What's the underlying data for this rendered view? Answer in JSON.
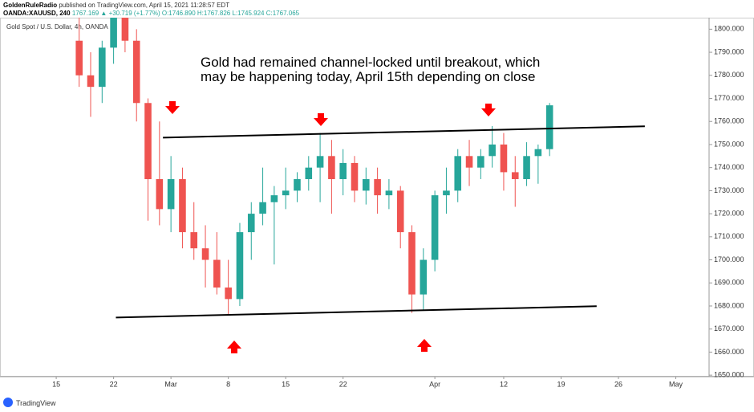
{
  "header": {
    "publisher": "GoldenRuleRadio",
    "published": "published on TradingView.com, April 15, 2021 11:28:57 EDT",
    "symbol": "OANDA:XAUUSD, 240",
    "last": "1767.169",
    "change": "▲ +30.719 (+1.77%)",
    "ohlc": "O:1746.890 H:1767.826 L:1745.924 C:1767.065"
  },
  "footer": {
    "brand": "TradingView"
  },
  "chart_data": {
    "type": "candlestick",
    "title": "Gold Spot / U.S. Dollar, 4h, OANDA",
    "annotation": [
      "Gold had remained channel-locked until breakout, which",
      "may be happening today, April 15th depending on close"
    ],
    "up_color": "#26a69a",
    "down_color": "#ef5350",
    "grid": false,
    "x": [
      2,
      3,
      4,
      5,
      6,
      7,
      8,
      9,
      10,
      11,
      12,
      13,
      14,
      15,
      16,
      17,
      18,
      19,
      20,
      21,
      22,
      23,
      24,
      25,
      26,
      27,
      28,
      29,
      30,
      31,
      32,
      33,
      34,
      35,
      36,
      37,
      38,
      39,
      40,
      41,
      42,
      43
    ],
    "open": [
      1795,
      1780,
      1775,
      1792,
      1805,
      1795,
      1768,
      1735,
      1722,
      1735,
      1712,
      1705,
      1700,
      1688,
      1683,
      1712,
      1720,
      1725,
      1728,
      1730,
      1735,
      1740,
      1745,
      1735,
      1742,
      1730,
      1735,
      1728,
      1730,
      1712,
      1685,
      1700,
      1728,
      1730,
      1745,
      1740,
      1745,
      1750,
      1738,
      1735,
      1745,
      1748
    ],
    "high": [
      1806,
      1790,
      1795,
      1810,
      1812,
      1800,
      1770,
      1760,
      1745,
      1740,
      1725,
      1715,
      1712,
      1700,
      1716,
      1725,
      1740,
      1732,
      1740,
      1738,
      1745,
      1755,
      1752,
      1748,
      1745,
      1740,
      1740,
      1735,
      1732,
      1715,
      1705,
      1730,
      1740,
      1748,
      1752,
      1748,
      1758,
      1755,
      1745,
      1751,
      1750,
      1768
    ],
    "low": [
      1775,
      1762,
      1768,
      1785,
      1790,
      1760,
      1717,
      1715,
      1712,
      1705,
      1700,
      1688,
      1685,
      1676,
      1680,
      1700,
      1715,
      1698,
      1722,
      1725,
      1730,
      1725,
      1720,
      1728,
      1725,
      1724,
      1720,
      1722,
      1705,
      1677,
      1678,
      1695,
      1720,
      1725,
      1732,
      1735,
      1740,
      1730,
      1723,
      1732,
      1733,
      1745
    ],
    "close": [
      1780,
      1775,
      1792,
      1805,
      1795,
      1768,
      1735,
      1722,
      1735,
      1712,
      1705,
      1700,
      1688,
      1683,
      1712,
      1720,
      1725,
      1728,
      1730,
      1735,
      1740,
      1745,
      1735,
      1742,
      1730,
      1735,
      1728,
      1730,
      1712,
      1685,
      1700,
      1728,
      1730,
      1745,
      1740,
      1745,
      1750,
      1738,
      1735,
      1745,
      1748,
      1767
    ],
    "trendlines": [
      {
        "x": [
          9.3,
          51.3
        ],
        "y": [
          1753.0,
          1757.9
        ]
      },
      {
        "x": [
          5.2,
          47.1
        ],
        "y": [
          1675.0,
          1679.9
        ]
      }
    ],
    "xlim": [
      -4.9,
      56.9
    ],
    "xticks": [
      {
        "value": 0,
        "label": "15"
      },
      {
        "value": 5,
        "label": "22"
      },
      {
        "value": 10,
        "label": "Mar"
      },
      {
        "value": 15,
        "label": "8"
      },
      {
        "value": 20,
        "label": "15"
      },
      {
        "value": 25,
        "label": "22"
      },
      {
        "value": 33,
        "label": "Apr"
      },
      {
        "value": 39,
        "label": "12"
      },
      {
        "value": 44,
        "label": "19"
      },
      {
        "value": 49,
        "label": "26"
      },
      {
        "value": 54,
        "label": "May"
      }
    ],
    "ylim": [
      1649.7,
      1805
    ],
    "yticks": [
      {
        "value": 1650,
        "label": "1650.000"
      },
      {
        "value": 1660,
        "label": "1660.000"
      },
      {
        "value": 1670,
        "label": "1670.000"
      },
      {
        "value": 1680,
        "label": "1680.000"
      },
      {
        "value": 1690,
        "label": "1690.000"
      },
      {
        "value": 1700,
        "label": "1700.000"
      },
      {
        "value": 1710,
        "label": "1710.000"
      },
      {
        "value": 1720,
        "label": "1720.000"
      },
      {
        "value": 1730,
        "label": "1730.000"
      },
      {
        "value": 1740,
        "label": "1740.000"
      },
      {
        "value": 1750,
        "label": "1750.000"
      },
      {
        "value": 1760,
        "label": "1760.000"
      },
      {
        "value": 1770,
        "label": "1770.000"
      },
      {
        "value": 1780,
        "label": "1780.000"
      },
      {
        "value": 1790,
        "label": "1790.000"
      },
      {
        "value": 1800,
        "label": "1800.000"
      }
    ]
  }
}
